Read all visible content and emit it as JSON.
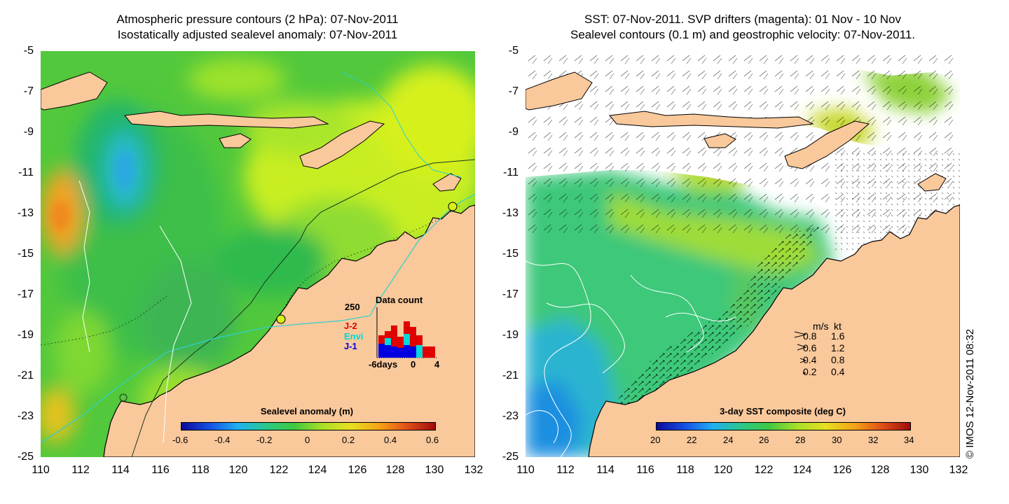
{
  "left_panel": {
    "title_line1": "Atmospheric pressure contours (2 hPa): 07-Nov-2011",
    "title_line2": "Isostatically adjusted sealevel anomaly: 07-Nov-2011",
    "y_ticks": [
      "-5",
      "-7",
      "-9",
      "-11",
      "-13",
      "-15",
      "-17",
      "-19",
      "-21",
      "-23",
      "-25"
    ],
    "x_ticks": [
      "110",
      "112",
      "114",
      "116",
      "118",
      "120",
      "122",
      "124",
      "126",
      "128",
      "130",
      "132"
    ],
    "colorbar": {
      "label": "Sealevel anomaly (m)",
      "ticks": [
        "-0.6",
        "-0.4",
        "-0.2",
        "0",
        "0.2",
        "0.4",
        "0.6"
      ],
      "range": [
        -0.6,
        0.6
      ]
    },
    "data_count": {
      "title": "Data count",
      "y_max_label": "250",
      "legend": [
        {
          "label": "J-2",
          "color": "#e00000"
        },
        {
          "label": "Envi",
          "color": "#00d8d8"
        },
        {
          "label": "J-1",
          "color": "#0000e0"
        }
      ],
      "x_labels": [
        "-6days",
        "0",
        "4"
      ]
    }
  },
  "right_panel": {
    "title_line1": "SST: 07-Nov-2011. SVP drifters (magenta): 01 Nov - 10 Nov",
    "title_line2": "Sealevel contours (0.1 m) and geostrophic velocity: 07-Nov-2011.",
    "y_ticks": [
      "-5",
      "-7",
      "-9",
      "-11",
      "-13",
      "-15",
      "-17",
      "-19",
      "-21",
      "-23",
      "-25"
    ],
    "x_ticks": [
      "110",
      "112",
      "114",
      "116",
      "118",
      "120",
      "122",
      "124",
      "126",
      "128",
      "130",
      "132"
    ],
    "colorbar": {
      "label": "3-day SST composite (deg C)",
      "ticks": [
        "20",
        "22",
        "24",
        "26",
        "28",
        "30",
        "32",
        "34"
      ],
      "range": [
        20,
        34
      ]
    },
    "velocity_legend": {
      "header_ms": "m/s",
      "header_kt": "kt",
      "rows": [
        {
          "ms": "0.8",
          "kt": "1.6"
        },
        {
          "ms": "0.6",
          "kt": "1.2"
        },
        {
          "ms": "0.4",
          "kt": "0.8"
        },
        {
          "ms": "0.2",
          "kt": "0.4"
        }
      ]
    }
  },
  "copyright": "© IMOS 12-Nov-2011 08:32",
  "colors": {
    "land": "#f9c89b",
    "no_data": "#ffffff",
    "coast_line": "#000000",
    "isobath": "#2fd0d0",
    "sla_dominant": "#4ccc3c",
    "sst_dominant": "#3cc87a"
  }
}
